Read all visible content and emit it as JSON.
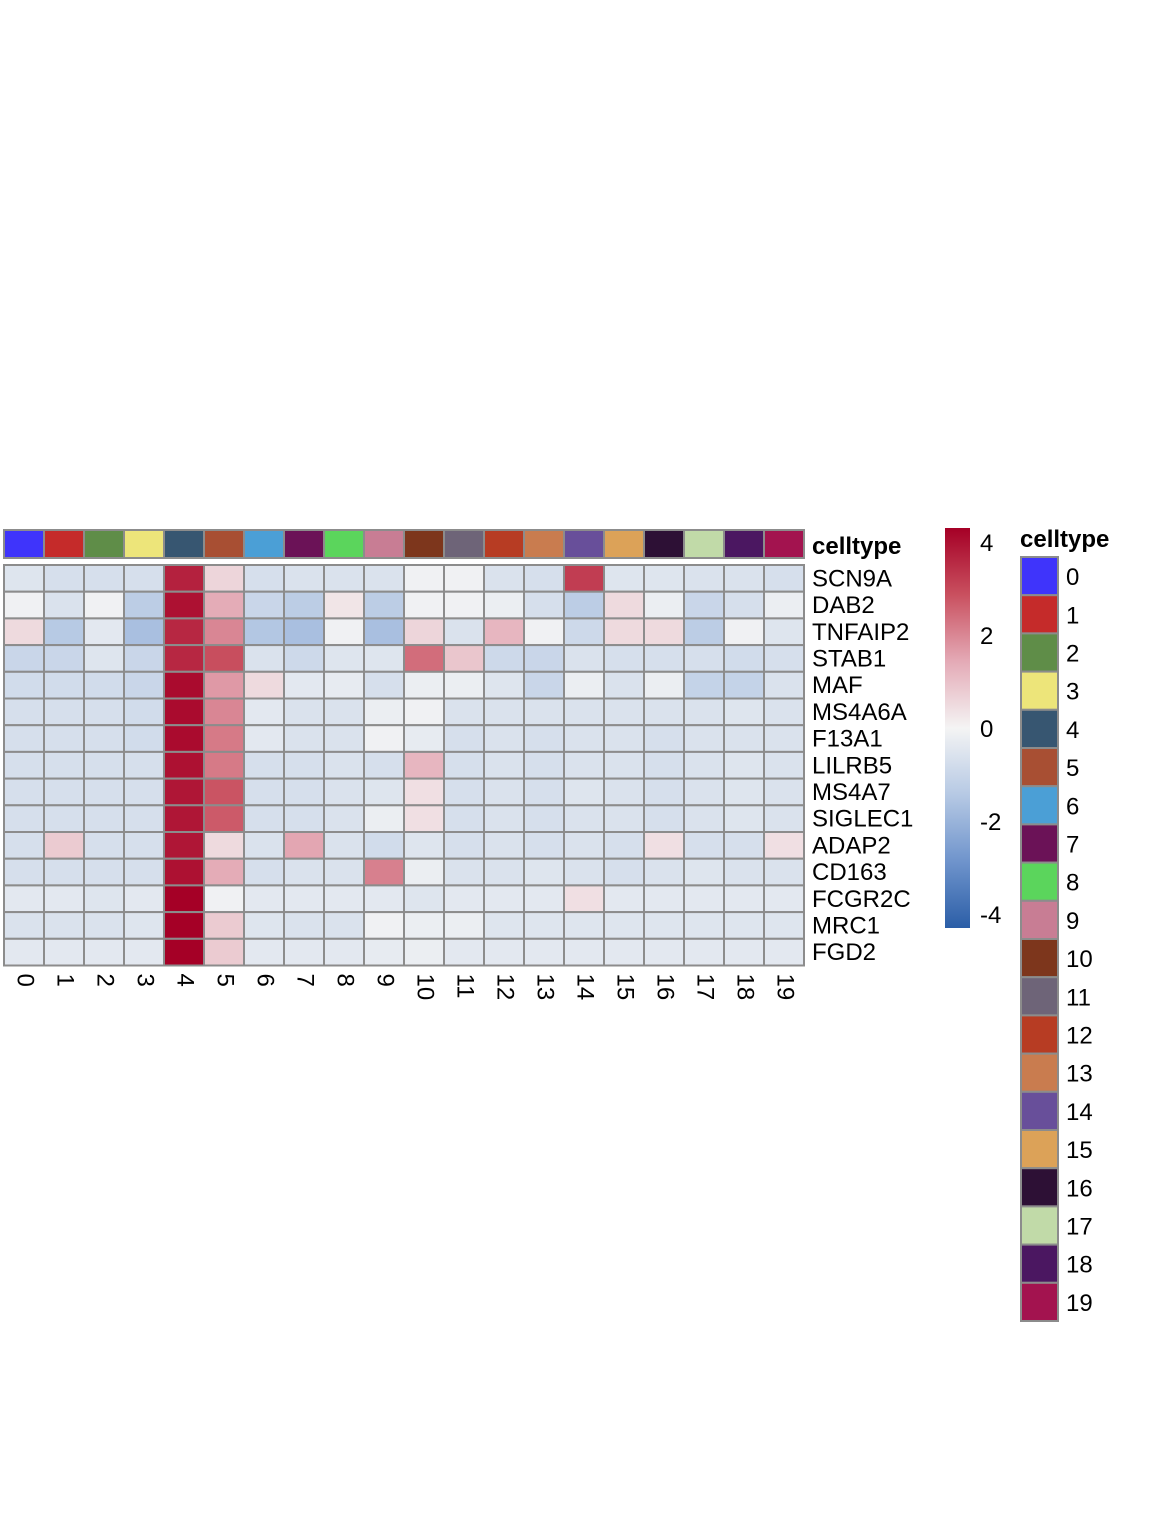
{
  "chart_data": {
    "type": "heatmap",
    "title": "",
    "xlabel": "",
    "ylabel": "",
    "x": [
      "0",
      "1",
      "2",
      "3",
      "4",
      "5",
      "6",
      "7",
      "8",
      "9",
      "10",
      "11",
      "12",
      "13",
      "14",
      "15",
      "16",
      "17",
      "18",
      "19"
    ],
    "y": [
      "SCN9A",
      "DAB2",
      "TNFAIP2",
      "STAB1",
      "MAF",
      "MS4A6A",
      "F13A1",
      "LILRB5",
      "MS4A7",
      "SIGLEC1",
      "ADAP2",
      "CD163",
      "FCGR2C",
      "MRC1",
      "FGD2"
    ],
    "values": [
      [
        -0.5,
        -0.7,
        -0.7,
        -0.7,
        3.7,
        0.6,
        -0.7,
        -0.6,
        -0.6,
        -0.6,
        -0.1,
        -0.1,
        -0.6,
        -0.7,
        3.2,
        -0.5,
        -0.5,
        -0.6,
        -0.6,
        -0.7
      ],
      [
        -0.1,
        -0.6,
        -0.1,
        -1.3,
        4.0,
        1.4,
        -1.0,
        -1.3,
        0.3,
        -1.3,
        -0.1,
        -0.1,
        -0.2,
        -0.7,
        -1.3,
        0.5,
        -0.2,
        -1.0,
        -0.7,
        -0.2
      ],
      [
        0.5,
        -1.4,
        -0.4,
        -1.7,
        3.6,
        2.0,
        -1.5,
        -1.7,
        -0.1,
        -1.7,
        0.6,
        -0.6,
        1.2,
        -0.1,
        -0.9,
        0.5,
        0.5,
        -1.3,
        -0.1,
        -0.5
      ],
      [
        -1.0,
        -1.0,
        -0.5,
        -1.0,
        3.6,
        2.9,
        -0.6,
        -0.9,
        -0.5,
        -0.5,
        2.4,
        0.9,
        -0.9,
        -1.0,
        -0.6,
        -0.7,
        -0.7,
        -0.7,
        -0.8,
        -0.7
      ],
      [
        -0.8,
        -0.8,
        -0.8,
        -1.0,
        4.1,
        1.7,
        0.5,
        -0.4,
        -0.3,
        -0.7,
        -0.2,
        -0.2,
        -0.5,
        -1.0,
        -0.2,
        -0.6,
        -0.2,
        -1.1,
        -1.1,
        -0.6
      ],
      [
        -0.7,
        -0.7,
        -0.7,
        -0.8,
        4.1,
        2.0,
        -0.4,
        -0.6,
        -0.6,
        -0.2,
        -0.1,
        -0.6,
        -0.6,
        -0.6,
        -0.6,
        -0.6,
        -0.6,
        -0.6,
        -0.5,
        -0.6
      ],
      [
        -0.7,
        -0.7,
        -0.7,
        -0.8,
        4.1,
        2.2,
        -0.4,
        -0.6,
        -0.6,
        -0.1,
        -0.3,
        -0.7,
        -0.6,
        -0.7,
        -0.6,
        -0.6,
        -0.7,
        -0.6,
        -0.6,
        -0.6
      ],
      [
        -0.7,
        -0.7,
        -0.7,
        -0.7,
        4.0,
        2.2,
        -0.7,
        -0.7,
        -0.6,
        -0.7,
        1.2,
        -0.7,
        -0.6,
        -0.7,
        -0.6,
        -0.6,
        -0.7,
        -0.6,
        -0.5,
        -0.6
      ],
      [
        -0.7,
        -0.7,
        -0.7,
        -0.7,
        3.9,
        2.8,
        -0.7,
        -0.7,
        -0.6,
        -0.5,
        0.4,
        -0.7,
        -0.6,
        -0.7,
        -0.5,
        -0.6,
        -0.7,
        -0.6,
        -0.5,
        -0.6
      ],
      [
        -0.7,
        -0.7,
        -0.7,
        -0.7,
        3.9,
        2.7,
        -0.7,
        -0.7,
        -0.6,
        -0.2,
        0.4,
        -0.7,
        -0.6,
        -0.7,
        -0.6,
        -0.6,
        -0.7,
        -0.6,
        -0.5,
        -0.6
      ],
      [
        -0.7,
        0.8,
        -0.7,
        -0.7,
        3.9,
        0.5,
        -0.6,
        1.5,
        -0.6,
        -0.8,
        -0.5,
        -0.7,
        -0.6,
        -0.7,
        -0.6,
        -0.7,
        0.4,
        -0.7,
        -0.7,
        0.4
      ],
      [
        -0.7,
        -0.7,
        -0.7,
        -0.7,
        4.0,
        1.4,
        -0.7,
        -0.6,
        -0.6,
        2.1,
        -0.2,
        -0.6,
        -0.6,
        -0.5,
        -0.6,
        -0.7,
        -0.6,
        -0.5,
        -0.6,
        -0.6
      ],
      [
        -0.4,
        -0.4,
        -0.5,
        -0.4,
        4.3,
        -0.1,
        -0.4,
        -0.4,
        -0.4,
        -0.4,
        -0.5,
        -0.4,
        -0.4,
        -0.4,
        0.4,
        -0.4,
        -0.4,
        -0.4,
        -0.4,
        -0.4
      ],
      [
        -0.6,
        -0.6,
        -0.6,
        -0.5,
        4.3,
        0.8,
        -0.5,
        -0.6,
        -0.6,
        -0.1,
        -0.2,
        -0.2,
        -0.5,
        -0.5,
        -0.5,
        -0.5,
        -0.5,
        -0.5,
        -0.5,
        -0.5
      ],
      [
        -0.4,
        -0.4,
        -0.4,
        -0.4,
        4.3,
        0.8,
        -0.4,
        -0.4,
        -0.4,
        -0.3,
        -0.2,
        -0.4,
        -0.4,
        -0.4,
        -0.4,
        -0.4,
        -0.4,
        -0.4,
        -0.4,
        -0.4
      ]
    ],
    "color_scale": {
      "min": -4.3,
      "max": 4.3,
      "colors": [
        "#2b5ea7",
        "#6f94cc",
        "#b6c9e4",
        "#f4f4f4",
        "#e4aab6",
        "#c9505f",
        "#a50026"
      ],
      "ticks": [
        4,
        2,
        0,
        -2,
        -4
      ]
    },
    "annotation": {
      "name": "celltype",
      "levels": [
        "0",
        "1",
        "2",
        "3",
        "4",
        "5",
        "6",
        "7",
        "8",
        "9",
        "10",
        "11",
        "12",
        "13",
        "14",
        "15",
        "16",
        "17",
        "18",
        "19"
      ],
      "colors": [
        "#3f34fb",
        "#c52b2a",
        "#5f8d48",
        "#ede57a",
        "#375671",
        "#a84f33",
        "#4b9fd6",
        "#6b1257",
        "#5bd55c",
        "#c87d94",
        "#7d361c",
        "#6e6478",
        "#b73c23",
        "#c97c4f",
        "#684f9a",
        "#dca258",
        "#2d1035",
        "#c1daa8",
        "#4b1761",
        "#a3134f"
      ]
    },
    "legend_position": "right",
    "grid": true
  }
}
